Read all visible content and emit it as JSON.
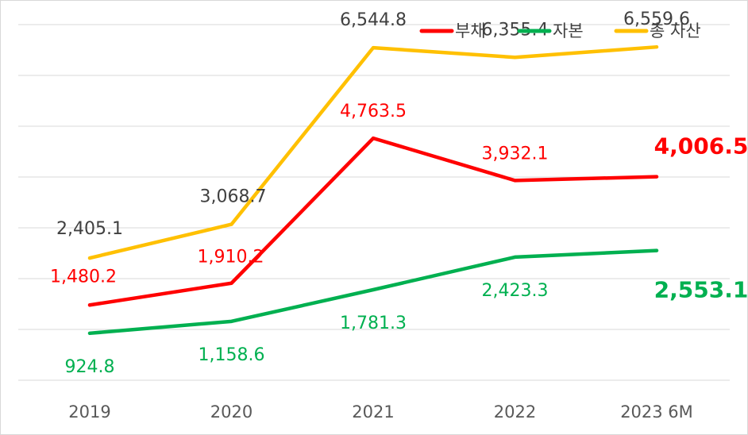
{
  "chart_data": {
    "type": "line",
    "categories": [
      "2019",
      "2020",
      "2021",
      "2022",
      "2023 6M"
    ],
    "series": [
      {
        "name": "부채",
        "color": "#ff0000",
        "values": [
          1480.2,
          1910.2,
          4763.5,
          3932.1,
          4006.5
        ],
        "labels": [
          "1,480.2",
          "1,910.2",
          "4,763.5",
          "3,932.1",
          "4,006.5"
        ]
      },
      {
        "name": "자본",
        "color": "#00b050",
        "values": [
          924.8,
          1158.6,
          1781.3,
          2423.3,
          2553.1
        ],
        "labels": [
          "924.8",
          "1,158.6",
          "1,781.3",
          "2,423.3",
          "2,553.1"
        ]
      },
      {
        "name": "총 자산",
        "color": "#ffc000",
        "values": [
          2405.1,
          3068.7,
          6544.8,
          6355.4,
          6559.6
        ],
        "labels": [
          "2,405.1",
          "3,068.7",
          "6,544.8",
          "6,355.4",
          "6,559.6"
        ]
      }
    ],
    "title": "",
    "xlabel": "",
    "ylabel": "",
    "ylim": [
      0,
      7000
    ],
    "grid": true,
    "legend": "top-right"
  }
}
